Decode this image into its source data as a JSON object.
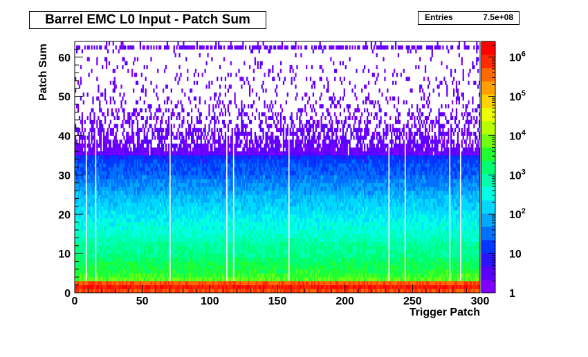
{
  "chart_data": {
    "type": "heatmap",
    "title": "Barrel EMC L0 Input - Patch Sum",
    "stats": {
      "label": "Entries",
      "value": "7.5e+08"
    },
    "xlabel": "Trigger Patch",
    "ylabel": "Patch Sum",
    "xlim": [
      0,
      300
    ],
    "ylim": [
      0,
      64
    ],
    "x_ticks": [
      0,
      50,
      100,
      150,
      200,
      250,
      300
    ],
    "y_ticks": [
      0,
      10,
      20,
      30,
      40,
      50,
      60
    ],
    "z_scale": "log",
    "z_range": [
      1,
      2500000
    ],
    "z_ticks": [
      {
        "value": 1,
        "label": "1"
      },
      {
        "value": 10,
        "label": "10"
      },
      {
        "value": 100,
        "label": "10^2"
      },
      {
        "value": 1000,
        "label": "10^3"
      },
      {
        "value": 10000,
        "label": "10^4"
      },
      {
        "value": 100000,
        "label": "10^5"
      },
      {
        "value": 1000000,
        "label": "10^6"
      }
    ],
    "n_x_bins": 300,
    "n_y_bins": 64,
    "row_profile_log10": [
      5.9,
      6.2,
      5.8,
      3.8,
      3.6,
      3.5,
      3.4,
      3.3,
      3.2,
      3.1,
      3.0,
      3.0,
      2.9,
      2.8,
      2.7,
      2.6,
      2.5,
      2.5,
      2.4,
      2.3,
      2.2,
      2.15,
      2.1,
      2.0,
      1.9,
      1.8,
      1.7,
      1.6,
      1.5,
      1.4,
      1.3,
      1.25,
      1.2,
      1.1,
      1.0,
      0.9,
      0.8,
      0.7,
      0.6,
      0.5,
      0.45,
      0.4,
      0.35,
      0.3,
      0.25,
      0.2,
      0.18,
      0.15,
      0.12,
      0.1,
      0.09,
      0.08,
      0.07,
      0.06,
      0.05,
      0.045,
      0.04,
      0.035,
      0.03,
      0.03,
      0.025,
      0.025,
      0.6,
      0.02
    ],
    "dead_columns": [
      8,
      15,
      70,
      112,
      117,
      158,
      232,
      244,
      277,
      285
    ]
  },
  "colors": {
    "palette": [
      "#7f00ff",
      "#5a00ff",
      "#2a14ff",
      "#0038ff",
      "#0070ff",
      "#00a8ff",
      "#00d8ff",
      "#00ffe4",
      "#00ffae",
      "#00ff70",
      "#20ff30",
      "#70ff10",
      "#b8ff00",
      "#ecff00",
      "#ffd200",
      "#ffa000",
      "#ff6a00",
      "#ff2a00",
      "#ff0000"
    ]
  }
}
